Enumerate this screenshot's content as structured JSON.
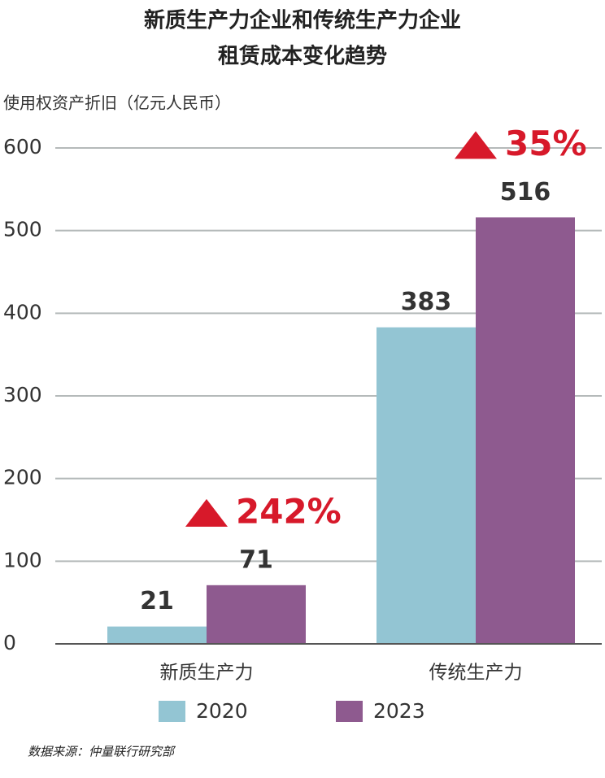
{
  "chart_data": {
    "type": "bar",
    "title": [
      "新质生产力企业和传统生产力企业",
      "租赁成本变化趋势"
    ],
    "y_label": "使用权资产折旧（亿元人民币）",
    "categories": [
      "新质生产力",
      "传统生产力"
    ],
    "series": [
      {
        "name": "2020",
        "color": "#93c5d3",
        "values": [
          21,
          383
        ]
      },
      {
        "name": "2023",
        "color": "#8e5a8f",
        "values": [
          71,
          516
        ]
      }
    ],
    "annotations": [
      "242%",
      "35%"
    ],
    "ylim": [
      0,
      600
    ],
    "yticks": [
      0,
      100,
      200,
      300,
      400,
      500,
      600
    ],
    "grid": true,
    "source": "数据来源：仲量联行研究部"
  }
}
